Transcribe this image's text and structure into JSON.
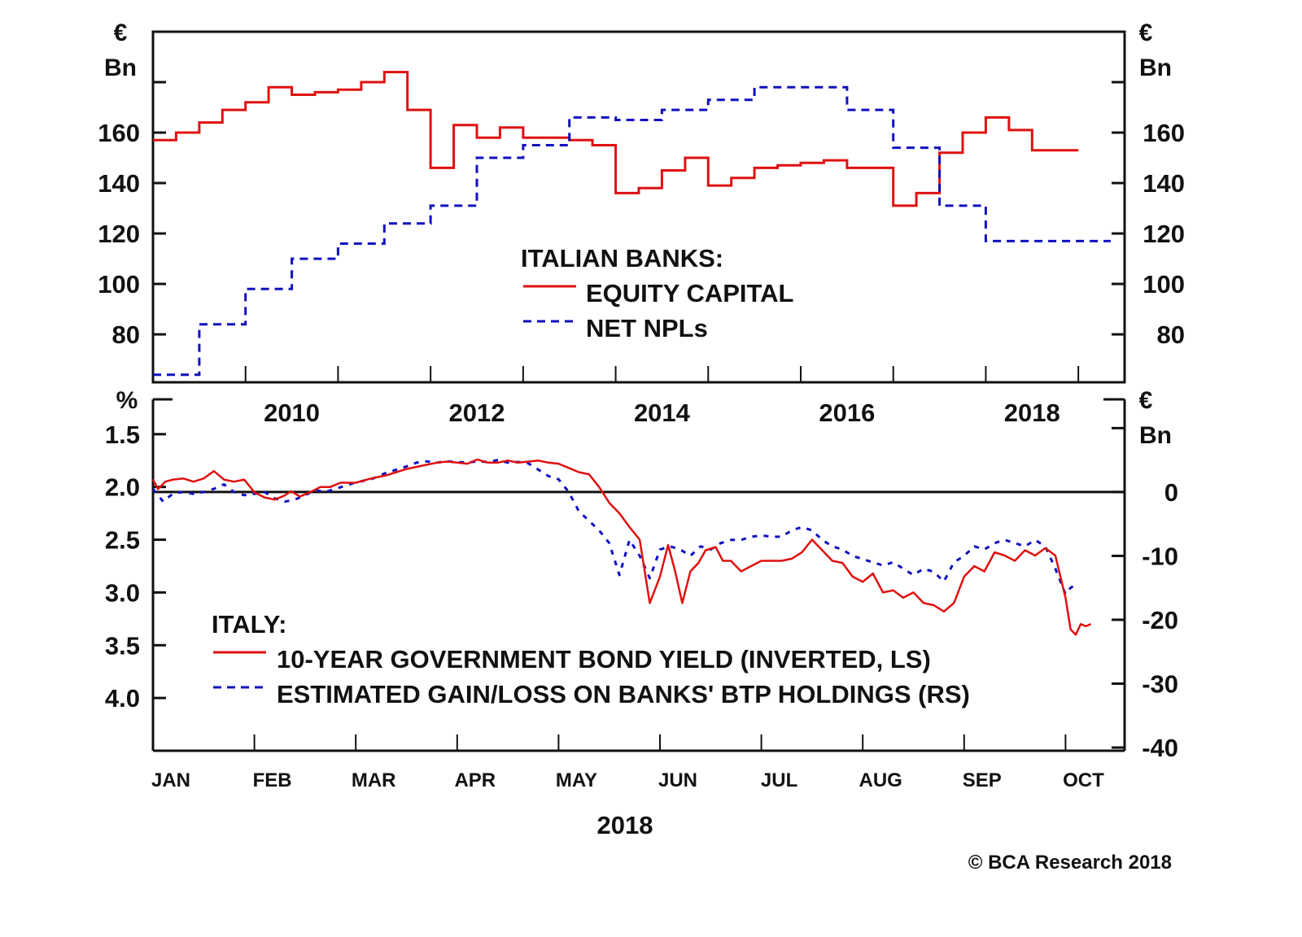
{
  "chart_data": [
    {
      "type": "line",
      "panel": "top",
      "step": true,
      "title": "",
      "legend_title": "ITALIAN BANKS:",
      "legend_position": "center",
      "left_unit": [
        "€",
        "Bn"
      ],
      "right_unit": [
        "€",
        "Bn"
      ],
      "yticks": [
        80,
        100,
        120,
        140,
        160
      ],
      "ylim": [
        61,
        200
      ],
      "xlim": [
        2009.0,
        2019.5
      ],
      "xtick_labels": [
        "2010",
        "2012",
        "2014",
        "2016",
        "2018"
      ],
      "series": [
        {
          "name": "EQUITY CAPITAL",
          "color": "#e01010",
          "style": "solid",
          "x": [
            2009.0,
            2009.25,
            2009.5,
            2009.75,
            2010.0,
            2010.25,
            2010.5,
            2010.75,
            2011.0,
            2011.25,
            2011.5,
            2011.75,
            2012.0,
            2012.25,
            2012.5,
            2012.75,
            2013.0,
            2013.25,
            2013.5,
            2013.75,
            2014.0,
            2014.25,
            2014.5,
            2014.75,
            2015.0,
            2015.25,
            2015.5,
            2015.75,
            2016.0,
            2016.25,
            2016.5,
            2016.75,
            2017.0,
            2017.25,
            2017.5,
            2017.75,
            2018.0,
            2018.25,
            2018.5,
            2018.75
          ],
          "values": [
            157,
            160,
            164,
            169,
            172,
            178,
            175,
            176,
            177,
            180,
            184,
            169,
            146,
            163,
            158,
            162,
            158,
            158,
            157,
            155,
            136,
            138,
            145,
            150,
            139,
            142,
            146,
            147,
            148,
            149,
            146,
            146,
            131,
            136,
            152,
            160,
            166,
            161,
            153,
            153
          ]
        },
        {
          "name": "NET NPLs",
          "color": "#1010c0",
          "style": "dashed",
          "x": [
            2009.0,
            2009.25,
            2009.5,
            2009.75,
            2010.0,
            2010.25,
            2010.5,
            2010.75,
            2011.0,
            2011.25,
            2011.5,
            2011.75,
            2012.0,
            2012.25,
            2012.5,
            2012.75,
            2013.0,
            2013.25,
            2013.5,
            2013.75,
            2014.0,
            2014.25,
            2014.5,
            2014.75,
            2015.0,
            2015.25,
            2015.5,
            2015.75,
            2016.0,
            2016.25,
            2016.5,
            2016.75,
            2017.0,
            2017.25,
            2017.5,
            2017.75,
            2018.0,
            2018.25,
            2018.5,
            2018.75,
            2019.0,
            2019.1
          ],
          "values": [
            64,
            64,
            84,
            84,
            98,
            98,
            110,
            110,
            116,
            116,
            124,
            124,
            131,
            131,
            150,
            150,
            155,
            155,
            166,
            166,
            165,
            165,
            169,
            169,
            173,
            173,
            178,
            178,
            178,
            178,
            169,
            169,
            154,
            154,
            131,
            131,
            117,
            117,
            117,
            117,
            117,
            117
          ]
        }
      ]
    },
    {
      "type": "line",
      "panel": "bottom",
      "title": "",
      "legend_title": "ITALY:",
      "legend_position": "bottom-left",
      "xlabel": "2018",
      "left_unit": [
        "%"
      ],
      "right_unit": [
        "€",
        "Bn"
      ],
      "left_axis": {
        "inverted": true,
        "ticks": [
          1.5,
          2.0,
          2.5,
          3.0,
          3.5,
          4.0
        ],
        "tick_labels": [
          "1.5",
          "2.0",
          "2.5",
          "3.0",
          "3.5",
          "4.0"
        ],
        "ylim": [
          1.17,
          4.5
        ]
      },
      "right_axis": {
        "ticks": [
          0,
          -10,
          -20,
          -30,
          -40
        ],
        "tick_labels": [
          "0",
          "-10",
          "-20",
          "-30",
          "-40"
        ],
        "ylim": [
          -40.5,
          14.5
        ]
      },
      "zero_line": true,
      "x_categories": [
        "JAN",
        "FEB",
        "MAR",
        "APR",
        "MAY",
        "JUN",
        "JUL",
        "AUG",
        "SEP",
        "OCT"
      ],
      "xlim_months": [
        0,
        9.6
      ],
      "series": [
        {
          "name": "10-YEAR GOVERNMENT BOND YIELD (INVERTED, LS)",
          "color": "#e01010",
          "style": "solid",
          "axis": "left",
          "x_months": [
            0.0,
            0.05,
            0.12,
            0.2,
            0.3,
            0.4,
            0.5,
            0.6,
            0.7,
            0.8,
            0.9,
            1.0,
            1.1,
            1.2,
            1.3,
            1.36,
            1.45,
            1.55,
            1.65,
            1.75,
            1.85,
            2.0,
            2.15,
            2.3,
            2.4,
            2.5,
            2.6,
            2.7,
            2.8,
            2.9,
            3.0,
            3.1,
            3.2,
            3.3,
            3.4,
            3.5,
            3.6,
            3.7,
            3.8,
            3.9,
            4.0,
            4.1,
            4.2,
            4.3,
            4.4,
            4.5,
            4.6,
            4.7,
            4.8,
            4.9,
            5.0,
            5.08,
            5.15,
            5.22,
            5.3,
            5.38,
            5.45,
            5.55,
            5.62,
            5.7,
            5.8,
            5.9,
            6.0,
            6.1,
            6.2,
            6.3,
            6.4,
            6.5,
            6.6,
            6.7,
            6.8,
            6.9,
            7.0,
            7.1,
            7.2,
            7.3,
            7.4,
            7.5,
            7.6,
            7.7,
            7.8,
            7.9,
            8.0,
            8.1,
            8.2,
            8.3,
            8.4,
            8.5,
            8.6,
            8.7,
            8.8,
            8.9,
            9.0,
            9.05,
            9.1,
            9.15,
            9.2,
            9.25
          ],
          "values": [
            1.93,
            2.02,
            1.95,
            1.93,
            1.92,
            1.95,
            1.92,
            1.85,
            1.93,
            1.95,
            1.93,
            2.05,
            2.1,
            2.12,
            2.08,
            2.04,
            2.09,
            2.05,
            2.0,
            2.0,
            1.96,
            1.96,
            1.92,
            1.89,
            1.86,
            1.83,
            1.81,
            1.79,
            1.77,
            1.76,
            1.77,
            1.78,
            1.74,
            1.77,
            1.77,
            1.75,
            1.77,
            1.76,
            1.75,
            1.77,
            1.78,
            1.82,
            1.86,
            1.88,
            2.0,
            2.15,
            2.25,
            2.38,
            2.5,
            3.1,
            2.85,
            2.55,
            2.8,
            3.1,
            2.8,
            2.72,
            2.6,
            2.57,
            2.7,
            2.7,
            2.8,
            2.75,
            2.7,
            2.7,
            2.7,
            2.68,
            2.62,
            2.5,
            2.6,
            2.7,
            2.72,
            2.85,
            2.9,
            2.82,
            3.0,
            2.98,
            3.05,
            3.0,
            3.1,
            3.12,
            3.18,
            3.1,
            2.85,
            2.75,
            2.8,
            2.62,
            2.65,
            2.7,
            2.6,
            2.65,
            2.58,
            2.65,
            3.05,
            3.35,
            3.4,
            3.3,
            3.32,
            3.3
          ]
        },
        {
          "name": "ESTIMATED GAIN/LOSS ON BANKS' BTP HOLDINGS (RS)",
          "color": "#1010c0",
          "style": "dashed",
          "axis": "right",
          "x_months": [
            0.0,
            0.1,
            0.2,
            0.3,
            0.4,
            0.5,
            0.6,
            0.7,
            0.8,
            0.9,
            1.0,
            1.1,
            1.2,
            1.3,
            1.4,
            1.5,
            1.6,
            1.7,
            1.8,
            1.9,
            2.0,
            2.15,
            2.3,
            2.4,
            2.5,
            2.6,
            2.7,
            2.8,
            2.9,
            3.0,
            3.1,
            3.2,
            3.3,
            3.4,
            3.5,
            3.6,
            3.7,
            3.8,
            3.9,
            4.0,
            4.1,
            4.2,
            4.3,
            4.4,
            4.5,
            4.6,
            4.7,
            4.8,
            4.9,
            5.0,
            5.1,
            5.2,
            5.3,
            5.4,
            5.5,
            5.6,
            5.7,
            5.8,
            5.9,
            6.0,
            6.1,
            6.2,
            6.3,
            6.4,
            6.5,
            6.6,
            6.7,
            6.8,
            6.9,
            7.0,
            7.1,
            7.2,
            7.3,
            7.4,
            7.5,
            7.6,
            7.7,
            7.8,
            7.9,
            8.0,
            8.1,
            8.2,
            8.3,
            8.4,
            8.5,
            8.6,
            8.7,
            8.8,
            8.9,
            9.0,
            9.05,
            9.1
          ],
          "values": [
            0.5,
            -1.5,
            -0.2,
            0.0,
            -0.3,
            0.0,
            0.5,
            1.2,
            0.0,
            -0.5,
            -0.3,
            0.0,
            -1.0,
            -1.5,
            -1.2,
            -0.5,
            0.3,
            0.0,
            0.5,
            1.0,
            1.5,
            2.0,
            3.0,
            3.5,
            4.0,
            4.6,
            4.8,
            4.6,
            4.8,
            4.7,
            4.6,
            4.8,
            4.7,
            5.0,
            4.6,
            4.7,
            4.5,
            3.5,
            2.5,
            2.0,
            0.0,
            -3.0,
            -4.5,
            -6.0,
            -8.0,
            -13.0,
            -7.5,
            -10.0,
            -13.5,
            -9.0,
            -8.5,
            -9.0,
            -10.0,
            -8.5,
            -9.0,
            -8.0,
            -7.5,
            -7.5,
            -7.0,
            -6.8,
            -7.0,
            -7.0,
            -6.0,
            -5.5,
            -6.0,
            -7.5,
            -8.5,
            -9.0,
            -10.0,
            -10.5,
            -11.0,
            -11.5,
            -11.0,
            -12.0,
            -13.0,
            -12.0,
            -12.5,
            -14.0,
            -11.0,
            -10.0,
            -8.5,
            -9.0,
            -8.0,
            -7.5,
            -8.0,
            -8.5,
            -7.5,
            -8.5,
            -12.0,
            -16.0,
            -15.0,
            -14.5
          ]
        }
      ]
    }
  ],
  "labels": {
    "top_left_unit_1": "€",
    "top_left_unit_2": "Bn",
    "top_right_unit_1": "€",
    "top_right_unit_2": "Bn",
    "bottom_left_unit": "%",
    "bottom_right_unit_1": "€",
    "bottom_right_unit_2": "Bn",
    "top_legend_title": "ITALIAN BANKS:",
    "top_legend_1": "EQUITY CAPITAL",
    "top_legend_2": "NET NPLs",
    "bottom_legend_title": "ITALY:",
    "bottom_legend_1": "10-YEAR GOVERNMENT BOND YIELD (INVERTED, LS)",
    "bottom_legend_2": "ESTIMATED GAIN/LOSS ON BANKS' BTP HOLDINGS (RS)",
    "bottom_xlabel": "2018",
    "copyright": "© BCA Research 2018"
  },
  "colors": {
    "red": "#e01010",
    "blue": "#1010c0",
    "axis": "#111111"
  }
}
